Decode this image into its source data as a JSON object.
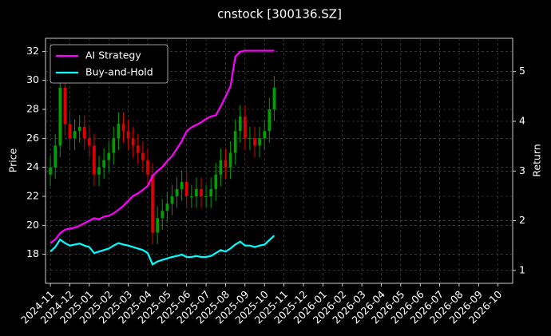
{
  "chart_data": {
    "type": "candlestick",
    "title": "cnstock [300136.SZ]",
    "y_label": "Price",
    "y2_label": "Return",
    "x": [
      0,
      0.25,
      0.5,
      0.75,
      1,
      1.25,
      1.5,
      1.75,
      2,
      2.25,
      2.5,
      2.75,
      3,
      3.25,
      3.5,
      3.75,
      4,
      4.25,
      4.5,
      4.75,
      5,
      5.25,
      5.5,
      5.75,
      6,
      6.25,
      6.5,
      6.75,
      7,
      7.25,
      7.5,
      7.75,
      8,
      8.25,
      8.5,
      8.75,
      9,
      9.25,
      9.5,
      9.75,
      10,
      10.25,
      10.5,
      10.75,
      11,
      11.25,
      11.5
    ],
    "open": [
      23.5,
      24.0,
      25.5,
      29.5,
      27.0,
      26.0,
      26.5,
      26.8,
      26.0,
      25.5,
      23.5,
      24.0,
      24.5,
      25.0,
      26.0,
      27.0,
      26.5,
      26.0,
      25.5,
      25.0,
      24.5,
      23.5,
      19.5,
      20.5,
      21.0,
      21.5,
      22.0,
      22.5,
      23.0,
      22.0,
      22.0,
      22.5,
      22.0,
      22.0,
      22.5,
      23.5,
      24.5,
      24.0,
      25.0,
      26.5,
      27.5,
      26.0,
      26.0,
      25.5,
      26.0,
      26.5,
      28.0
    ],
    "high": [
      24.8,
      26.3,
      30.3,
      30.3,
      27.8,
      27.3,
      27.6,
      27.6,
      26.8,
      26.3,
      24.8,
      25.3,
      25.8,
      26.8,
      27.8,
      27.8,
      27.3,
      26.8,
      26.3,
      25.8,
      25.3,
      24.3,
      21.3,
      21.8,
      22.3,
      22.8,
      23.3,
      23.8,
      23.8,
      22.8,
      23.3,
      23.3,
      22.8,
      23.3,
      24.3,
      25.3,
      25.3,
      25.8,
      27.3,
      28.3,
      28.3,
      26.8,
      26.8,
      26.8,
      27.3,
      28.8,
      30.3
    ],
    "low": [
      22.7,
      23.2,
      24.7,
      26.2,
      25.2,
      25.2,
      25.7,
      25.2,
      24.7,
      22.7,
      22.7,
      23.2,
      23.7,
      24.2,
      25.2,
      25.7,
      25.2,
      24.7,
      24.2,
      23.7,
      22.7,
      18.7,
      18.7,
      19.7,
      20.2,
      20.7,
      21.2,
      21.7,
      21.2,
      21.2,
      21.2,
      21.2,
      21.2,
      21.2,
      21.7,
      22.7,
      23.2,
      23.2,
      24.2,
      25.7,
      25.2,
      25.2,
      24.7,
      24.7,
      25.2,
      25.7,
      27.2
    ],
    "close": [
      24.0,
      25.5,
      29.5,
      27.0,
      26.0,
      26.5,
      26.8,
      26.0,
      25.5,
      23.5,
      24.0,
      24.5,
      25.0,
      26.0,
      27.0,
      26.5,
      26.0,
      25.5,
      25.0,
      24.5,
      23.5,
      19.5,
      20.5,
      21.0,
      21.5,
      22.0,
      22.5,
      23.0,
      22.0,
      22.0,
      22.5,
      22.0,
      22.0,
      22.5,
      23.5,
      24.5,
      24.0,
      25.0,
      26.5,
      27.5,
      26.0,
      26.0,
      25.5,
      26.0,
      26.5,
      28.0,
      29.5
    ],
    "up_color": "#00a000",
    "down_color": "#e00000",
    "series": [
      {
        "name": "AI Strategy",
        "color": "#ff00ff",
        "axis": "y2",
        "values": [
          1.55,
          1.62,
          1.75,
          1.82,
          1.84,
          1.86,
          1.9,
          1.95,
          2.0,
          2.05,
          2.03,
          2.08,
          2.1,
          2.15,
          2.22,
          2.3,
          2.4,
          2.5,
          2.55,
          2.62,
          2.7,
          2.9,
          3.0,
          3.08,
          3.2,
          3.3,
          3.45,
          3.6,
          3.8,
          3.88,
          3.93,
          3.98,
          4.05,
          4.1,
          4.12,
          4.3,
          4.5,
          4.7,
          5.3,
          5.4,
          5.42,
          5.42,
          5.42,
          5.42,
          5.42,
          5.42,
          5.42
        ]
      },
      {
        "name": "Buy-and-Hold",
        "color": "#00ffff",
        "axis": "y2",
        "values": [
          1.38,
          1.47,
          1.62,
          1.55,
          1.5,
          1.52,
          1.54,
          1.5,
          1.47,
          1.35,
          1.38,
          1.41,
          1.44,
          1.5,
          1.55,
          1.52,
          1.5,
          1.47,
          1.44,
          1.41,
          1.35,
          1.12,
          1.18,
          1.21,
          1.24,
          1.27,
          1.29,
          1.32,
          1.27,
          1.27,
          1.29,
          1.27,
          1.27,
          1.29,
          1.35,
          1.41,
          1.38,
          1.44,
          1.52,
          1.58,
          1.5,
          1.5,
          1.47,
          1.5,
          1.52,
          1.61,
          1.7
        ]
      }
    ],
    "xlim": [
      -0.25,
      23.75
    ],
    "xticks": [
      {
        "value": 0,
        "label": "2024-11"
      },
      {
        "value": 1,
        "label": "2024-12"
      },
      {
        "value": 2,
        "label": "2025-01"
      },
      {
        "value": 3,
        "label": "2025-02"
      },
      {
        "value": 4,
        "label": "2025-03"
      },
      {
        "value": 5,
        "label": "2025-04"
      },
      {
        "value": 6,
        "label": "2025-05"
      },
      {
        "value": 7,
        "label": "2025-06"
      },
      {
        "value": 8,
        "label": "2025-07"
      },
      {
        "value": 9,
        "label": "2025-08"
      },
      {
        "value": 10,
        "label": "2025-09"
      },
      {
        "value": 11,
        "label": "2025-10"
      },
      {
        "value": 12,
        "label": "2025-11"
      },
      {
        "value": 13,
        "label": "2025-12"
      },
      {
        "value": 14,
        "label": "2026-01"
      },
      {
        "value": 15,
        "label": "2026-02"
      },
      {
        "value": 16,
        "label": "2026-03"
      },
      {
        "value": 17,
        "label": "2026-04"
      },
      {
        "value": 18,
        "label": "2026-05"
      },
      {
        "value": 19,
        "label": "2026-06"
      },
      {
        "value": 20,
        "label": "2026-07"
      },
      {
        "value": 21,
        "label": "2026-08"
      },
      {
        "value": 22,
        "label": "2026-09"
      },
      {
        "value": 23,
        "label": "2026-10"
      }
    ],
    "ylim": [
      16.0,
      32.9
    ],
    "yticks": [
      18,
      20,
      22,
      24,
      26,
      28,
      30,
      32
    ],
    "y2lim": [
      0.74,
      5.67
    ],
    "y2ticks": [
      1,
      2,
      3,
      4,
      5
    ],
    "grid": true,
    "legend": "upper left"
  }
}
